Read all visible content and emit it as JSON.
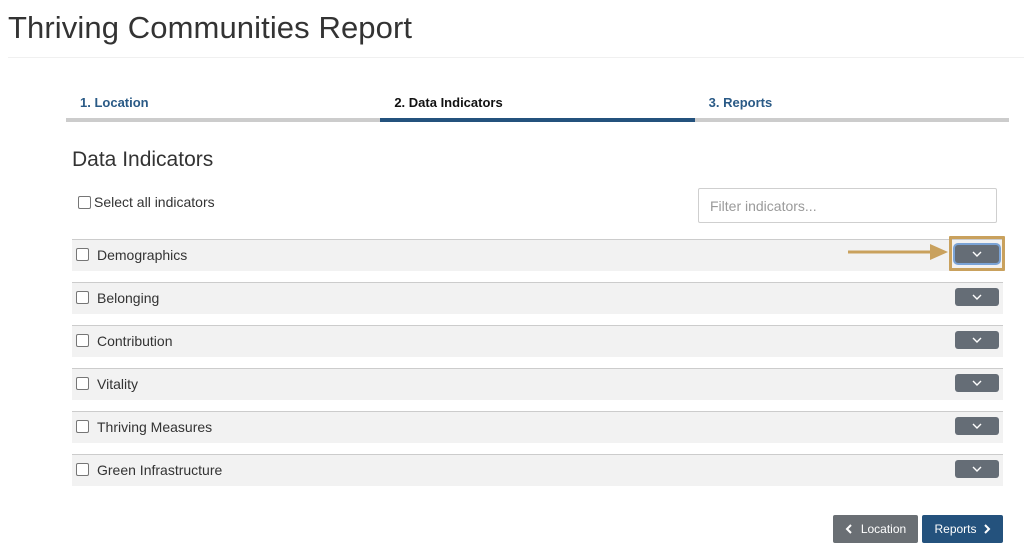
{
  "header": {
    "title": "Thriving Communities Report"
  },
  "steps": [
    {
      "label": "1. Location",
      "active": false
    },
    {
      "label": "2. Data Indicators",
      "active": true
    },
    {
      "label": "3. Reports",
      "active": false
    }
  ],
  "section": {
    "title": "Data Indicators",
    "select_all_label": "Select all indicators",
    "filter_placeholder": "Filter indicators..."
  },
  "indicators": [
    {
      "label": "Demographics"
    },
    {
      "label": "Belonging"
    },
    {
      "label": "Contribution"
    },
    {
      "label": "Vitality"
    },
    {
      "label": "Thriving Measures"
    },
    {
      "label": "Green Infrastructure"
    }
  ],
  "icons": {
    "expand": "chevron-down-icon",
    "back": "chevron-left-icon",
    "next": "chevron-right-icon",
    "annotation": "arrow-right-icon"
  },
  "colors": {
    "accent": "#24527d",
    "step_link": "#2a5a86",
    "button_gray": "#656d76",
    "annotation": "#c9a15d"
  },
  "footer": {
    "back_label": "Location",
    "next_label": "Reports"
  }
}
